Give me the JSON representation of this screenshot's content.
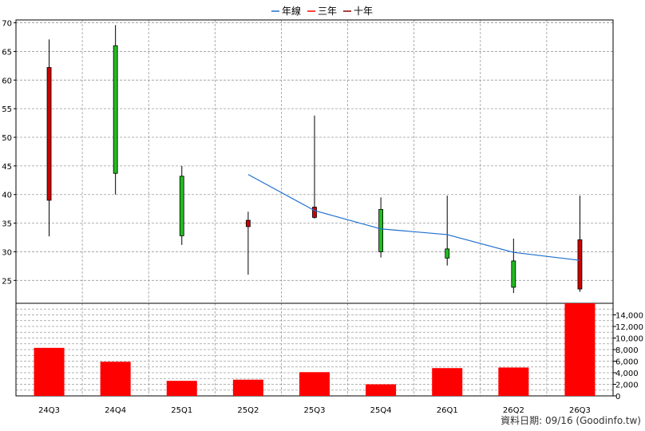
{
  "chart_data": {
    "type": "candlestick",
    "legend": [
      {
        "label": "年線",
        "color": "#1f6fcf"
      },
      {
        "label": "三年",
        "color": "#ff0000"
      },
      {
        "label": "十年",
        "color": "#8b0000"
      }
    ],
    "categories": [
      "24Q3",
      "24Q4",
      "25Q1",
      "25Q2",
      "25Q3",
      "25Q4",
      "26Q1",
      "26Q2",
      "26Q3"
    ],
    "price_axis": {
      "ticks": [
        25,
        30,
        35,
        40,
        45,
        50,
        55,
        60,
        65,
        70
      ],
      "range": [
        21,
        70.5
      ],
      "side": "left"
    },
    "candles": [
      {
        "period": "24Q3",
        "open": 39.0,
        "high": 67.1,
        "low": 32.7,
        "close": 62.2,
        "color": "#cc0000"
      },
      {
        "period": "24Q4",
        "open": 43.7,
        "high": 69.6,
        "low": 40.0,
        "close": 66.0,
        "color": "#22bb22"
      },
      {
        "period": "25Q1",
        "open": 32.8,
        "high": 45.0,
        "low": 31.2,
        "close": 43.2,
        "color": "#22bb22"
      },
      {
        "period": "25Q2",
        "open": 34.4,
        "high": 37.0,
        "low": 26.0,
        "close": 35.5,
        "color": "#cc0000"
      },
      {
        "period": "25Q3",
        "open": 36.0,
        "high": 53.8,
        "low": 35.8,
        "close": 37.8,
        "color": "#cc0000"
      },
      {
        "period": "25Q4",
        "open": 30.0,
        "high": 39.5,
        "low": 29.0,
        "close": 37.4,
        "color": "#22bb22"
      },
      {
        "period": "26Q1",
        "open": 28.9,
        "high": 39.8,
        "low": 27.6,
        "close": 30.5,
        "color": "#22bb22"
      },
      {
        "period": "26Q2",
        "open": 23.8,
        "high": 32.3,
        "low": 22.8,
        "close": 28.4,
        "color": "#22bb22"
      },
      {
        "period": "26Q3",
        "open": 23.5,
        "high": 39.8,
        "low": 23.0,
        "close": 32.1,
        "color": "#cc0000"
      }
    ],
    "annual_line": {
      "name": "年線",
      "color": "#1f6fcf",
      "points": [
        {
          "period": "25Q2",
          "value": 43.5
        },
        {
          "period": "25Q3",
          "value": 37.2
        },
        {
          "period": "25Q4",
          "value": 34.0
        },
        {
          "period": "26Q1",
          "value": 33.0
        },
        {
          "period": "26Q2",
          "value": 29.9
        },
        {
          "period": "26Q3",
          "value": 28.5
        }
      ]
    },
    "volume_axis": {
      "ticks": [
        0,
        2000,
        4000,
        6000,
        8000,
        10000,
        12000,
        14000
      ],
      "tick_labels": [
        "0",
        "2,000",
        "4,000",
        "6,000",
        "8,000",
        "10,000",
        "12,000",
        "14,000"
      ],
      "range": [
        0,
        16000
      ],
      "side": "right"
    },
    "volume": {
      "color": "#ff0000",
      "values": [
        8300,
        5900,
        2600,
        2800,
        4100,
        2000,
        4800,
        4900,
        16000
      ]
    },
    "grid": true
  },
  "footer": {
    "text": "資料日期: 09/16 (Goodinfo.tw)"
  }
}
